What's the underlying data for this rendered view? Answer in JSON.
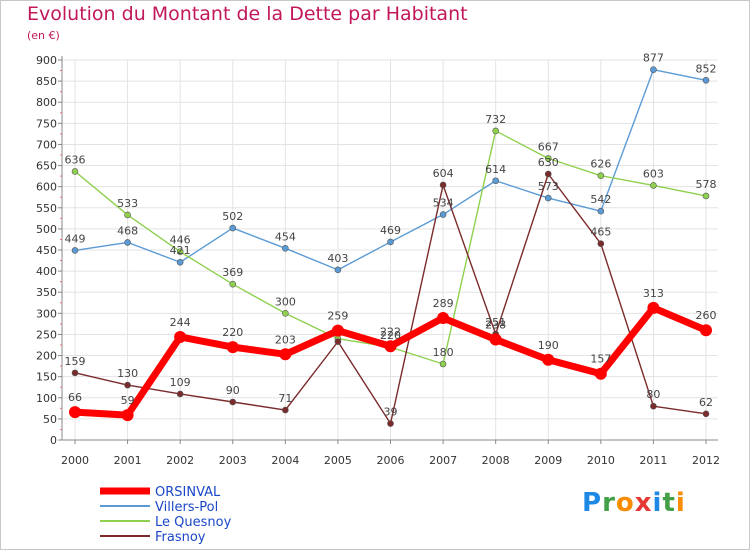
{
  "title": "Evolution du Montant de la Dette par Habitant",
  "subtitle": "(en €)",
  "logo": {
    "text": "Proxiti",
    "letter_colors": [
      "#1e88e5",
      "#43a047",
      "#fb8c00",
      "#e53935",
      "#1e88e5",
      "#43a047",
      "#fb8c00"
    ]
  },
  "chart_data": {
    "type": "line",
    "x": [
      "2000",
      "2001",
      "2002",
      "2003",
      "2004",
      "2005",
      "2006",
      "2007",
      "2008",
      "2009",
      "2010",
      "2011",
      "2012"
    ],
    "ylim": [
      0,
      900
    ],
    "yticks": [
      0,
      50,
      100,
      150,
      200,
      250,
      300,
      350,
      400,
      450,
      500,
      550,
      600,
      650,
      700,
      750,
      800,
      850,
      900
    ],
    "grid": true,
    "legend": "bottom-left",
    "series": [
      {
        "name": "Villers-Pol",
        "color": "#5b9bd5",
        "values": [
          449,
          468,
          421,
          502,
          454,
          403,
          469,
          534,
          614,
          573,
          542,
          877,
          852
        ],
        "labels": [
          "449",
          "468",
          "421",
          "502",
          "454",
          "403",
          "469",
          "534",
          "614",
          "573",
          "542",
          "877",
          "852"
        ]
      },
      {
        "name": "Le Quesnoy",
        "color": "#8fd14f",
        "values": [
          636,
          533,
          446,
          369,
          300,
          240,
          220,
          180,
          732,
          667,
          626,
          603,
          578
        ],
        "labels": [
          "636",
          "533",
          "446",
          "369",
          "300",
          "",
          "220",
          "180",
          "732",
          "667",
          "626",
          "603",
          "578"
        ]
      },
      {
        "name": "Frasnoy",
        "color": "#7b2b2b",
        "values": [
          159,
          130,
          109,
          90,
          71,
          233,
          39,
          604,
          251,
          630,
          465,
          80,
          62
        ],
        "labels": [
          "159",
          "130",
          "109",
          "90",
          "71",
          "",
          "39",
          "604",
          "251",
          "630",
          "465",
          "80",
          "62"
        ]
      },
      {
        "name": "ORSINVAL",
        "color": "#ff0000",
        "values": [
          66,
          59,
          244,
          220,
          203,
          259,
          222,
          289,
          238,
          190,
          157,
          313,
          260
        ],
        "labels": [
          "66",
          "59",
          "244",
          "220",
          "203",
          "259",
          "222",
          "289",
          "238",
          "190",
          "157",
          "313",
          "260"
        ]
      }
    ],
    "legend_order": [
      "ORSINVAL",
      "Villers-Pol",
      "Le Quesnoy",
      "Frasnoy"
    ]
  }
}
